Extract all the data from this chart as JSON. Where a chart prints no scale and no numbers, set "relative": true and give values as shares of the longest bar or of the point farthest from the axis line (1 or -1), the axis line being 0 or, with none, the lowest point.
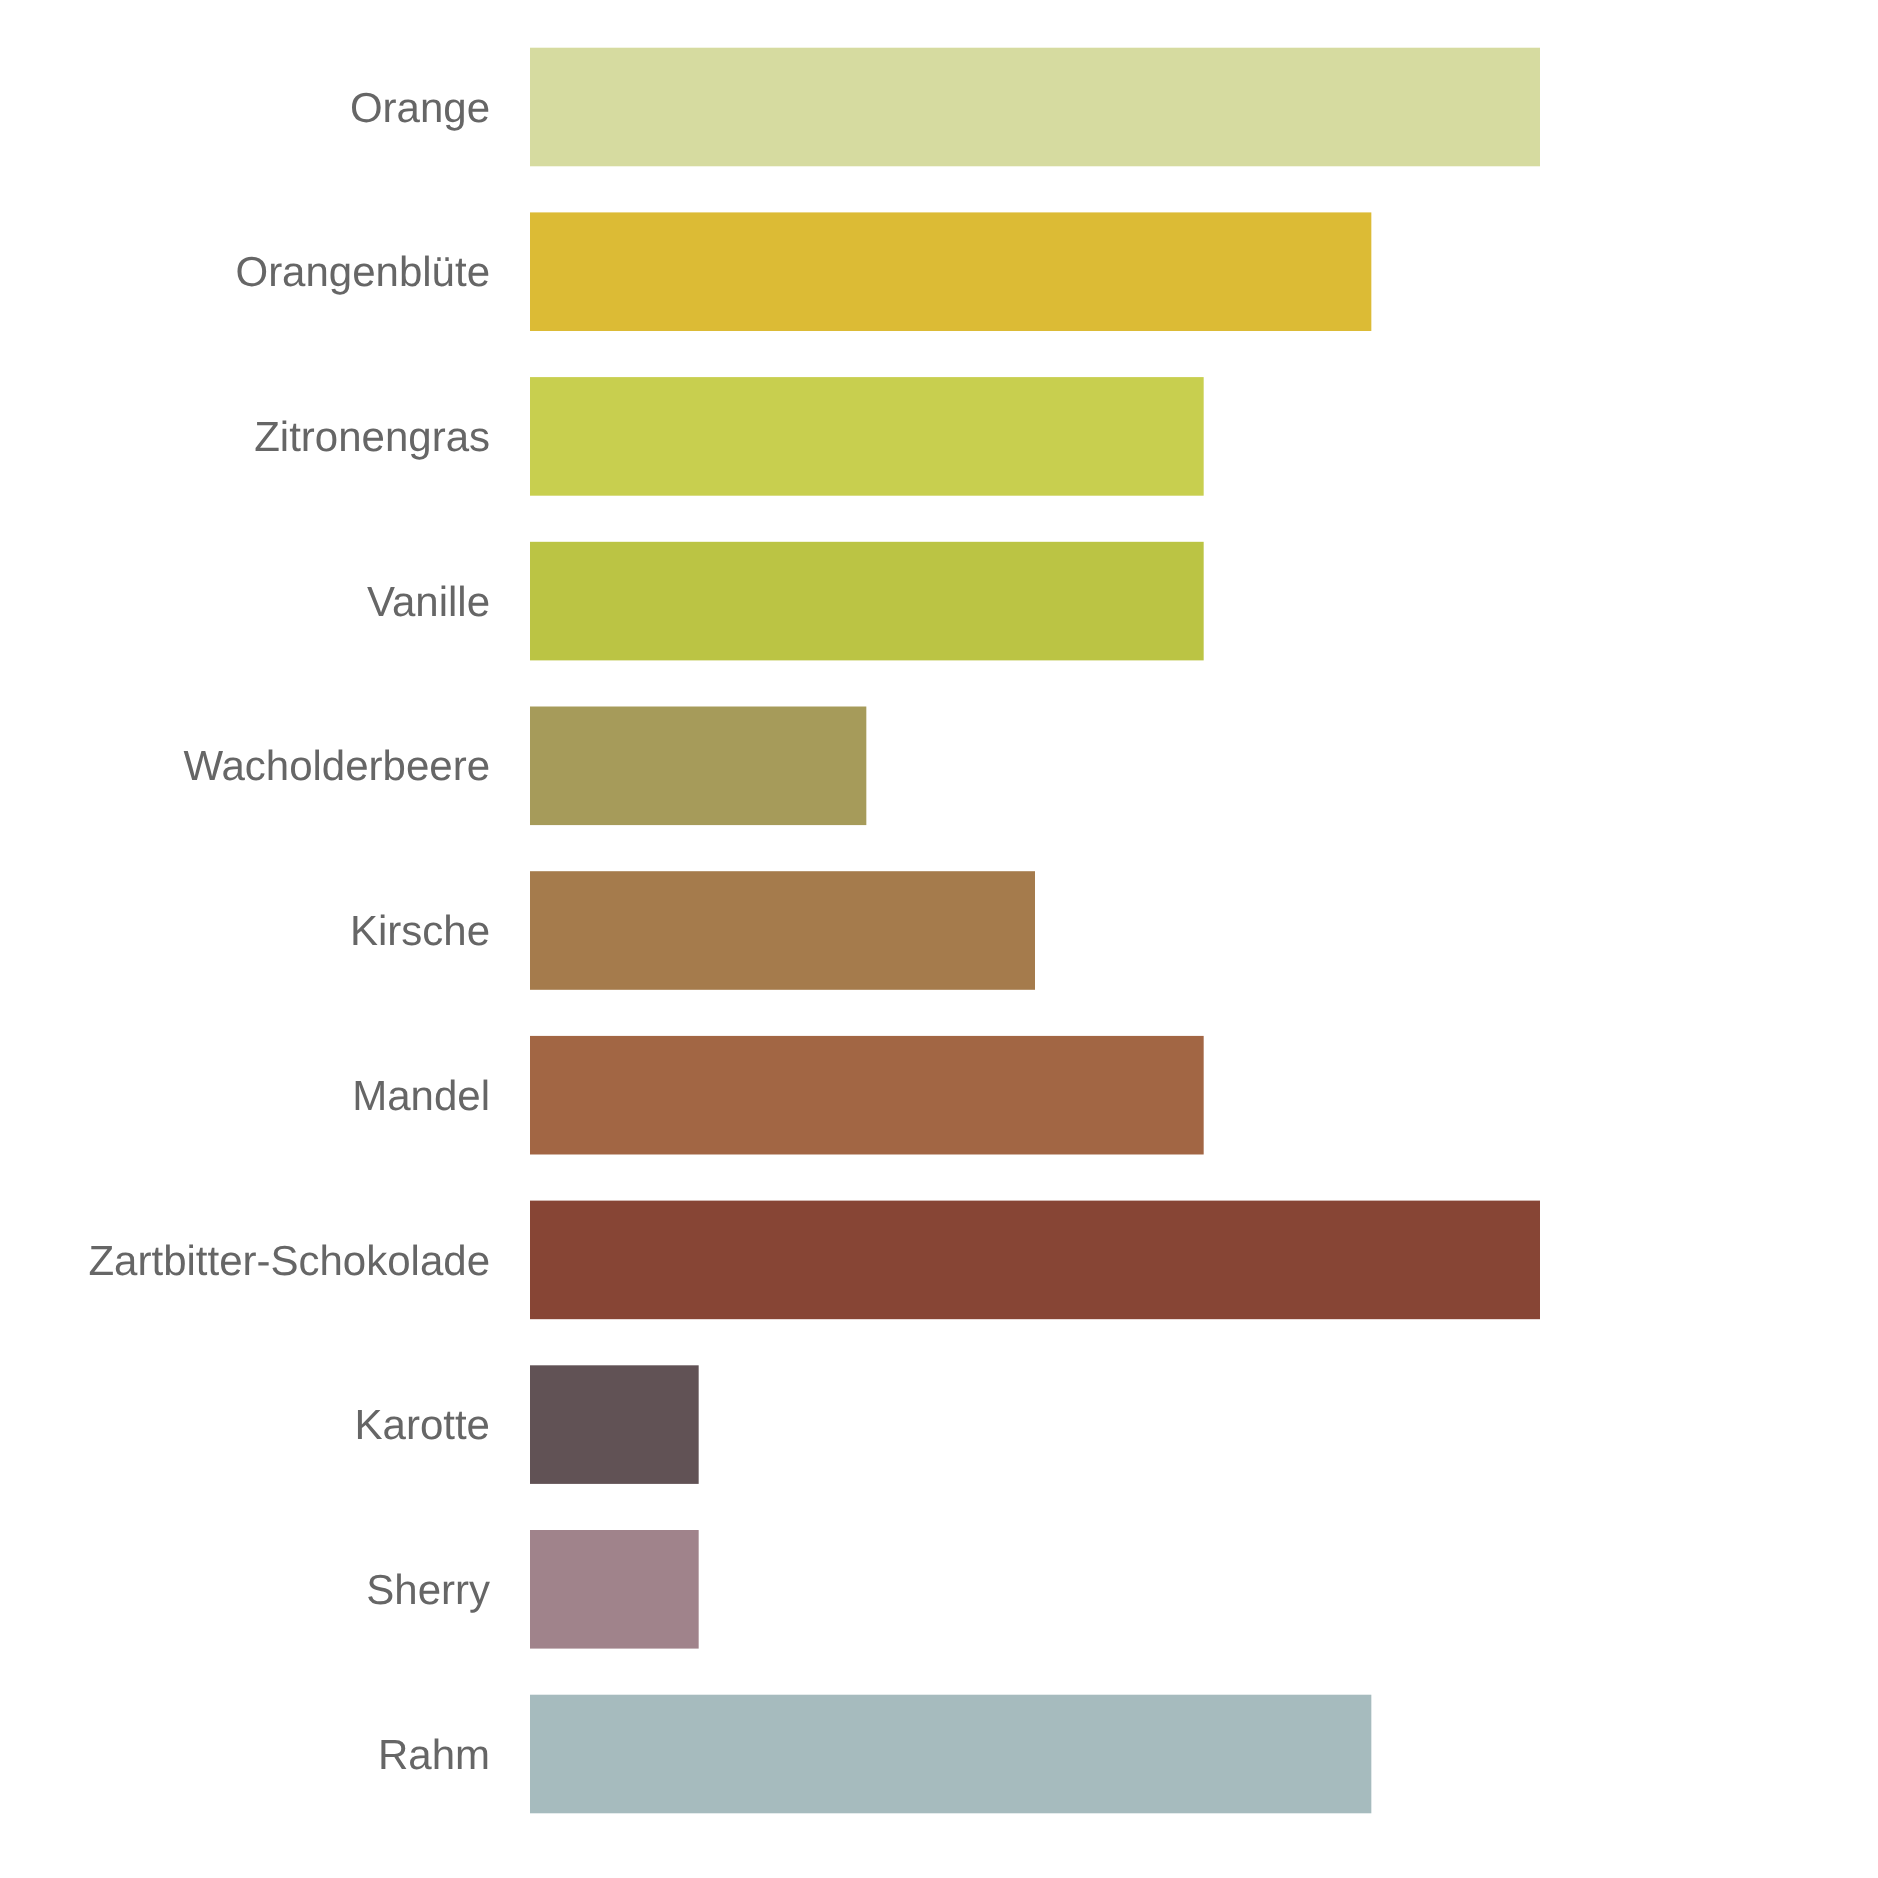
{
  "chart_data": {
    "type": "bar",
    "orientation": "horizontal",
    "relative": true,
    "categories": [
      "Orange",
      "Orangenblüte",
      "Zitronengras",
      "Vanille",
      "Wacholderbeere",
      "Kirsche",
      "Mandel",
      "Zartbitter-Schokolade",
      "Karotte",
      "Sherry",
      "Rahm"
    ],
    "values": [
      1,
      0.833,
      0.667,
      0.667,
      0.333,
      0.5,
      0.667,
      1,
      0.167,
      0.167,
      0.833
    ],
    "colors": [
      "#d6dba0",
      "#dcbb35",
      "#c8cf4f",
      "#bbc444",
      "#a69b5a",
      "#a57b4c",
      "#a26644",
      "#874535",
      "#615255",
      "#a0838b",
      "#a6bbbe"
    ]
  }
}
